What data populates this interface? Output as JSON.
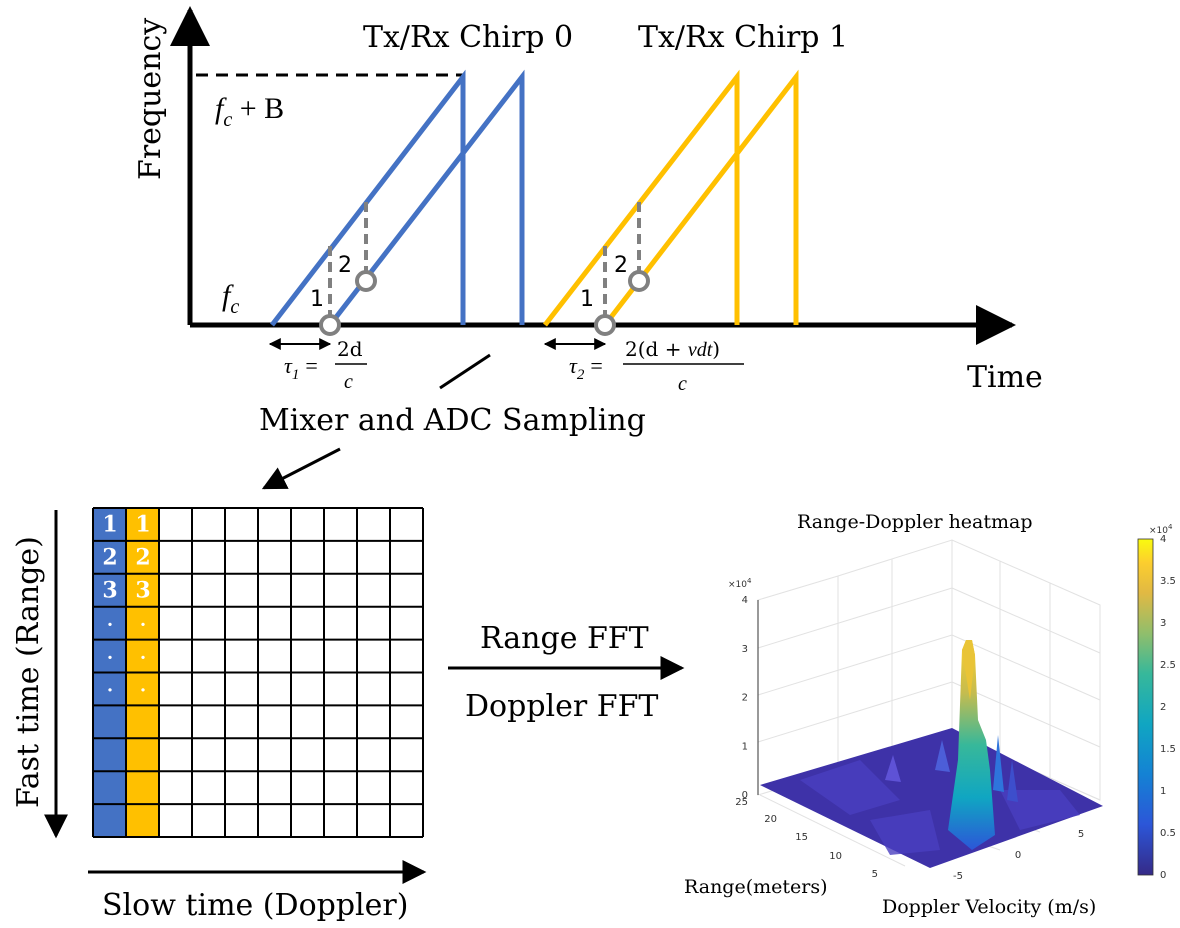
{
  "top_chart": {
    "y_axis_label": "Frequency",
    "x_axis_label": "Time",
    "chirp0_label": "Tx/Rx Chirp 0",
    "chirp1_label": "Tx/Rx Chirp 1",
    "fc_plus_b_label": "f",
    "fc_plus_b_sub": "c",
    "fc_plus_b_rest": " + B",
    "fc_label": "f",
    "fc_sub": "c",
    "point1_label": "1",
    "point2_label": "2",
    "tau1_label": "τ",
    "tau1_sub": "1",
    "tau1_eq": "=",
    "tau1_num": "2d",
    "tau1_den": "c",
    "tau2_label": "τ",
    "tau2_sub": "2",
    "tau2_eq": "=",
    "tau2_num_a": "2(d + ",
    "tau2_num_b": "vdt",
    "tau2_num_c": ")",
    "tau2_den": "c",
    "colors": {
      "chirp0": "#4472C4",
      "chirp1": "#FFC000",
      "marker": "#808080",
      "axis": "#000000"
    }
  },
  "process_label": "Mixer and ADC Sampling",
  "matrix": {
    "y_axis_label": "Fast time (Range)",
    "x_axis_label": "Slow time (Doppler)",
    "sample_labels": [
      "1",
      "2",
      "3",
      "·",
      "·",
      "·"
    ],
    "rows": 10,
    "cols": 10
  },
  "fft_steps": {
    "first": "Range FFT",
    "second": "Doppler FFT"
  },
  "heatmap": {
    "title": "Range-Doppler heatmap",
    "z_ticks": [
      "0",
      "1",
      "2",
      "3",
      "4"
    ],
    "z_exponent": "×10",
    "z_exponent_power": "4",
    "range_ticks": [
      "25",
      "20",
      "15",
      "10",
      "5"
    ],
    "range_label": "Range(meters)",
    "doppler_ticks": [
      "-5",
      "0",
      "5"
    ],
    "doppler_label": "Doppler Velocity (m/s)",
    "colorbar_ticks": [
      "0",
      "0.5",
      "1",
      "1.5",
      "2",
      "2.5",
      "3",
      "3.5",
      "4"
    ],
    "colorbar_exponent": "×10",
    "colorbar_exponent_power": "4"
  }
}
